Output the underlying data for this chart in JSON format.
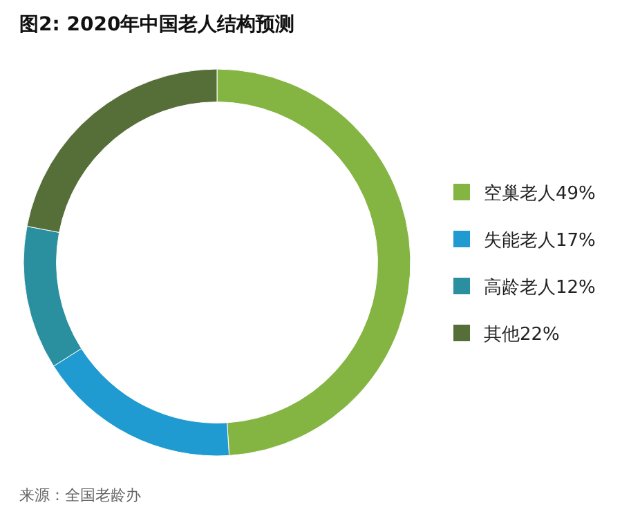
{
  "chart_data": {
    "type": "donut",
    "title": "图2: 2020年中国老人结构预测",
    "categories": [
      "空巢老人49%",
      "失能老人17%",
      "高龄老人12%",
      "其他22%"
    ],
    "values": [
      49,
      17,
      12,
      22
    ],
    "colors": [
      "#84b441",
      "#1f9bd1",
      "#2a8f9e",
      "#566e38"
    ],
    "legend": "right",
    "annotations": [
      "来源：全国老龄办"
    ]
  }
}
